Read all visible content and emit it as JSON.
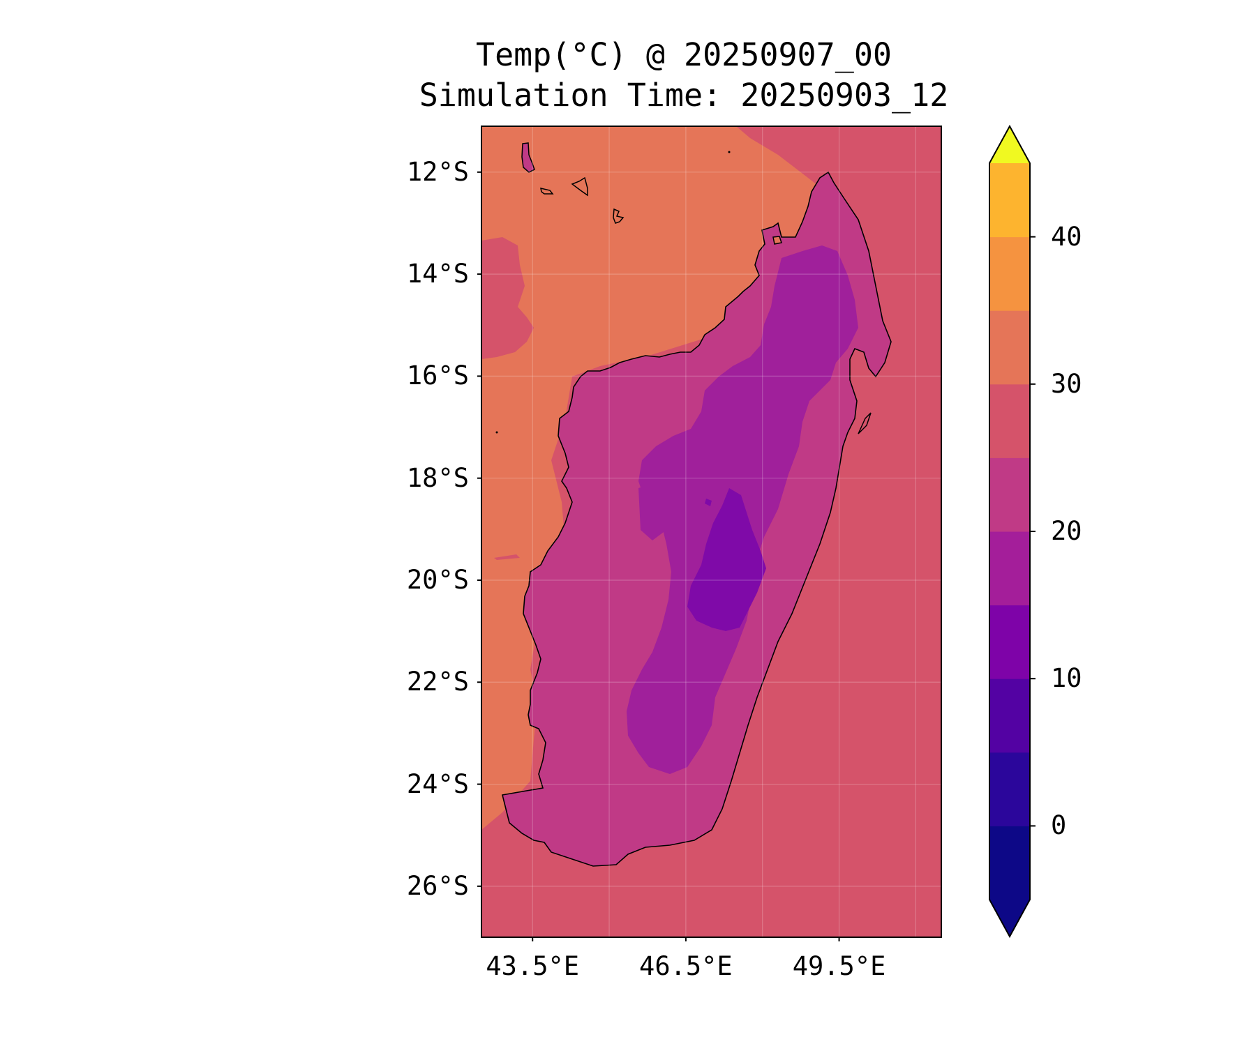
{
  "title": {
    "line1": "Temp(°C) @ 20250907_00",
    "line2": "Simulation Time: 20250903_12"
  },
  "map": {
    "region": "Madagascar",
    "variable": "Temp(°C)",
    "lon_range": [
      42.5,
      51.5
    ],
    "lat_range": [
      -27,
      -11.1
    ],
    "projection": "PlateCarree",
    "gridlines": true,
    "lat_ticks": [
      {
        "value": -12,
        "label": "12°S"
      },
      {
        "value": -14,
        "label": "14°S"
      },
      {
        "value": -16,
        "label": "16°S"
      },
      {
        "value": -18,
        "label": "18°S"
      },
      {
        "value": -20,
        "label": "20°S"
      },
      {
        "value": -22,
        "label": "22°S"
      },
      {
        "value": -24,
        "label": "24°S"
      },
      {
        "value": -26,
        "label": "26°S"
      }
    ],
    "lon_ticks": [
      {
        "value": 43.5,
        "label": "43.5°E"
      },
      {
        "value": 46.5,
        "label": "46.5°E"
      },
      {
        "value": 49.5,
        "label": "49.5°E"
      }
    ],
    "colors": {
      "ocean_east": "#d5536a",
      "ocean_west": "#e57558",
      "land_warm": "#c03a86",
      "land_mid": "#a0209b",
      "land_cold": "#7f0aa8",
      "coastline": "#000000"
    }
  },
  "colorbar": {
    "extend": "both",
    "levels": [
      -5,
      0,
      5,
      10,
      15,
      20,
      25,
      30,
      35,
      40,
      45
    ],
    "colors": [
      "#0d0887",
      "#2b069b",
      "#5302a3",
      "#7e03a8",
      "#a41e9a",
      "#c03a86",
      "#d5536a",
      "#e57558",
      "#f59340",
      "#fdb42f",
      "#f0f921"
    ],
    "under_color": "#0d0887",
    "over_color": "#f0f921",
    "ticks": [
      {
        "value": 0,
        "label": "0"
      },
      {
        "value": 10,
        "label": "10"
      },
      {
        "value": 20,
        "label": "20"
      },
      {
        "value": 30,
        "label": "30"
      },
      {
        "value": 40,
        "label": "40"
      }
    ]
  }
}
